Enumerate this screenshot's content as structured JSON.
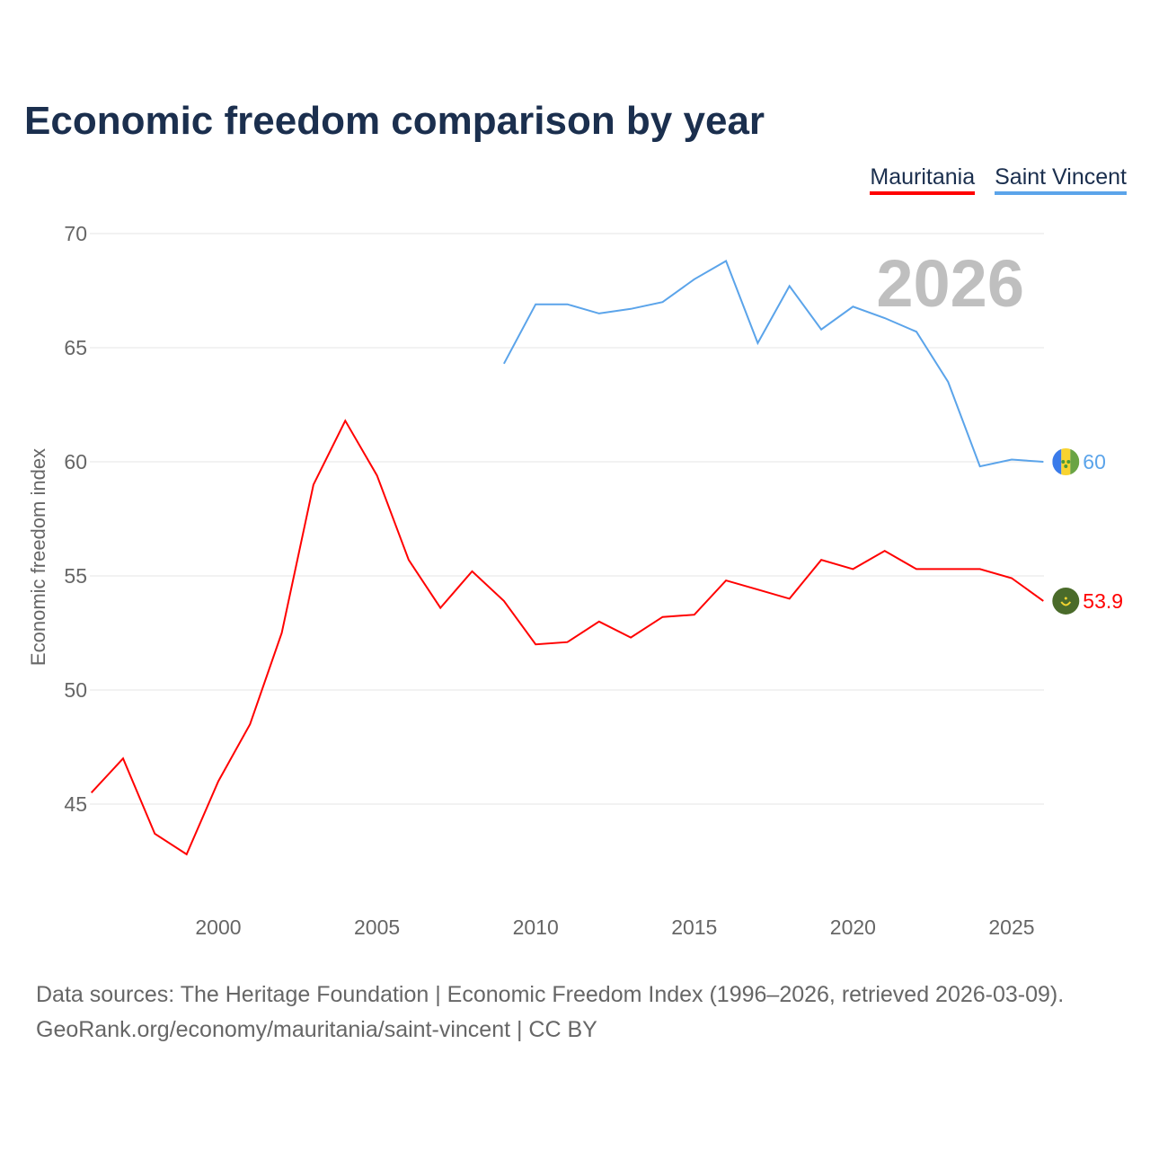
{
  "chart_data": {
    "type": "line",
    "title": "Economic freedom comparison by year",
    "ylabel": "Economic freedom index",
    "xlabel": "",
    "xlim": [
      1996,
      2026
    ],
    "ylim": [
      40,
      72
    ],
    "yticks": [
      45,
      50,
      55,
      60,
      65,
      70
    ],
    "xticks": [
      2000,
      2005,
      2010,
      2015,
      2020,
      2025
    ],
    "grid": true,
    "legend_position": "top-right",
    "watermark_year": "2026",
    "series": [
      {
        "name": "Mauritania",
        "color": "#ff0000",
        "end_label": "53.9",
        "flag": "mauritania-flag",
        "x": [
          1996,
          1997,
          1998,
          1999,
          2000,
          2001,
          2002,
          2003,
          2004,
          2005,
          2006,
          2007,
          2008,
          2009,
          2010,
          2011,
          2012,
          2013,
          2014,
          2015,
          2016,
          2017,
          2018,
          2019,
          2020,
          2021,
          2022,
          2023,
          2024,
          2025,
          2026
        ],
        "values": [
          45.5,
          47.0,
          43.7,
          42.8,
          46.0,
          48.5,
          52.5,
          59.0,
          61.8,
          59.4,
          55.7,
          53.6,
          55.2,
          53.9,
          52.0,
          52.1,
          53.0,
          52.3,
          53.2,
          53.3,
          54.8,
          54.4,
          54.0,
          55.7,
          55.3,
          56.1,
          55.3,
          55.3,
          55.3,
          54.9,
          53.9
        ]
      },
      {
        "name": "Saint Vincent",
        "color": "#5ba4ea",
        "end_label": "60",
        "flag": "saint-vincent-flag",
        "x": [
          2009,
          2010,
          2011,
          2012,
          2013,
          2014,
          2015,
          2016,
          2017,
          2018,
          2019,
          2020,
          2021,
          2022,
          2023,
          2024,
          2025,
          2026
        ],
        "values": [
          64.3,
          66.9,
          66.9,
          66.5,
          66.7,
          67.0,
          68.0,
          68.8,
          65.2,
          67.7,
          65.8,
          66.8,
          66.3,
          65.7,
          63.5,
          59.8,
          60.1,
          60.0
        ]
      }
    ]
  },
  "footer": {
    "line1": "Data sources: The Heritage Foundation | Economic Freedom Index (1996–2026, retrieved 2026-03-09).",
    "line2": "GeoRank.org/economy/mauritania/saint-vincent | CC BY"
  }
}
